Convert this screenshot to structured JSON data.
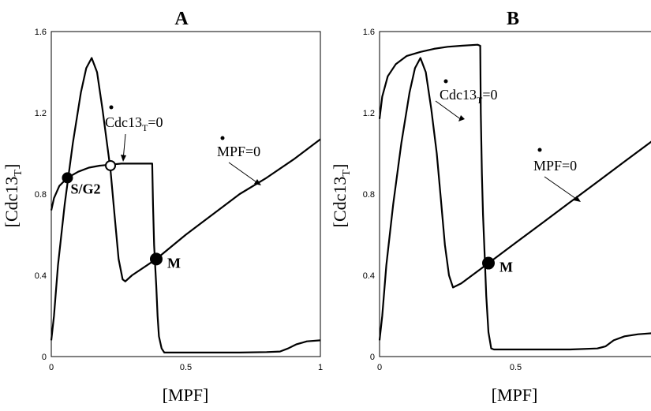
{
  "chart_data": [
    {
      "type": "line",
      "title": "A",
      "xlabel": "[MPF]",
      "ylabel": "[Cdc13_T]",
      "xlim": [
        0,
        1
      ],
      "ylim": [
        0,
        1.6
      ],
      "x_ticks": [
        "0",
        "0.5",
        "1"
      ],
      "y_ticks": [
        "0",
        "0.4",
        "0.8",
        "1.2",
        "1.6"
      ],
      "series": [
        {
          "name": "Cdc13_T=0",
          "points": [
            [
              0.0,
              0.72
            ],
            [
              0.01,
              0.78
            ],
            [
              0.03,
              0.84
            ],
            [
              0.06,
              0.88
            ],
            [
              0.1,
              0.91
            ],
            [
              0.14,
              0.93
            ],
            [
              0.18,
              0.94
            ],
            [
              0.22,
              0.945
            ],
            [
              0.26,
              0.95
            ],
            [
              0.3,
              0.95
            ],
            [
              0.34,
              0.95
            ],
            [
              0.375,
              0.95
            ],
            [
              0.378,
              0.75
            ],
            [
              0.382,
              0.55
            ],
            [
              0.386,
              0.45
            ],
            [
              0.39,
              0.35
            ],
            [
              0.395,
              0.2
            ],
            [
              0.4,
              0.1
            ],
            [
              0.41,
              0.04
            ],
            [
              0.42,
              0.02
            ],
            [
              0.5,
              0.02
            ],
            [
              0.6,
              0.02
            ],
            [
              0.7,
              0.02
            ],
            [
              0.8,
              0.022
            ],
            [
              0.85,
              0.025
            ],
            [
              0.88,
              0.04
            ],
            [
              0.91,
              0.06
            ],
            [
              0.95,
              0.075
            ],
            [
              1.0,
              0.08
            ]
          ]
        },
        {
          "name": "MPF=0",
          "points": [
            [
              0.0,
              0.08
            ],
            [
              0.01,
              0.2
            ],
            [
              0.025,
              0.45
            ],
            [
              0.05,
              0.75
            ],
            [
              0.08,
              1.05
            ],
            [
              0.11,
              1.3
            ],
            [
              0.13,
              1.42
            ],
            [
              0.15,
              1.47
            ],
            [
              0.17,
              1.4
            ],
            [
              0.19,
              1.22
            ],
            [
              0.21,
              1.02
            ],
            [
              0.22,
              0.92
            ],
            [
              0.235,
              0.7
            ],
            [
              0.25,
              0.48
            ],
            [
              0.265,
              0.38
            ],
            [
              0.275,
              0.37
            ],
            [
              0.3,
              0.4
            ],
            [
              0.39,
              0.48
            ],
            [
              0.5,
              0.6
            ],
            [
              0.6,
              0.7
            ],
            [
              0.7,
              0.8
            ],
            [
              0.8,
              0.88
            ],
            [
              0.9,
              0.97
            ],
            [
              1.0,
              1.07
            ]
          ]
        }
      ],
      "markers": [
        {
          "label": "S/G2",
          "x": 0.06,
          "y": 0.88,
          "filled": true
        },
        {
          "label": "",
          "x": 0.22,
          "y": 0.94,
          "filled": false
        },
        {
          "label": "M",
          "x": 0.39,
          "y": 0.48,
          "filled": true
        }
      ],
      "annotations": {
        "cdc13": {
          "text": "Cdc13",
          "sub": "T",
          "suffix": "=0"
        },
        "mpf": "MPF=0"
      }
    },
    {
      "type": "line",
      "title": "B",
      "xlabel": "[MPF]",
      "ylabel": "[Cdc13_T]",
      "xlim": [
        0,
        1
      ],
      "ylim": [
        0,
        1.6
      ],
      "x_ticks": [
        "0",
        "0.5"
      ],
      "y_ticks": [
        "0",
        "0.4",
        "0.8",
        "1.2",
        "1.6"
      ],
      "series": [
        {
          "name": "Cdc13_T=0",
          "points": [
            [
              0.0,
              1.17
            ],
            [
              0.01,
              1.28
            ],
            [
              0.03,
              1.38
            ],
            [
              0.06,
              1.44
            ],
            [
              0.1,
              1.48
            ],
            [
              0.15,
              1.5
            ],
            [
              0.2,
              1.515
            ],
            [
              0.25,
              1.525
            ],
            [
              0.3,
              1.53
            ],
            [
              0.36,
              1.535
            ],
            [
              0.37,
              1.53
            ],
            [
              0.372,
              1.2
            ],
            [
              0.376,
              0.9
            ],
            [
              0.38,
              0.7
            ],
            [
              0.386,
              0.5
            ],
            [
              0.392,
              0.3
            ],
            [
              0.4,
              0.12
            ],
            [
              0.41,
              0.04
            ],
            [
              0.42,
              0.035
            ],
            [
              0.5,
              0.035
            ],
            [
              0.6,
              0.035
            ],
            [
              0.7,
              0.035
            ],
            [
              0.8,
              0.04
            ],
            [
              0.83,
              0.05
            ],
            [
              0.86,
              0.08
            ],
            [
              0.9,
              0.1
            ],
            [
              0.95,
              0.11
            ],
            [
              1.0,
              0.115
            ]
          ]
        },
        {
          "name": "MPF=0",
          "points": [
            [
              0.0,
              0.08
            ],
            [
              0.01,
              0.2
            ],
            [
              0.025,
              0.45
            ],
            [
              0.05,
              0.75
            ],
            [
              0.08,
              1.05
            ],
            [
              0.11,
              1.3
            ],
            [
              0.13,
              1.42
            ],
            [
              0.15,
              1.47
            ],
            [
              0.17,
              1.4
            ],
            [
              0.19,
              1.22
            ],
            [
              0.21,
              1.0
            ],
            [
              0.225,
              0.78
            ],
            [
              0.24,
              0.55
            ],
            [
              0.255,
              0.4
            ],
            [
              0.27,
              0.34
            ],
            [
              0.3,
              0.36
            ],
            [
              0.4,
              0.46
            ],
            [
              0.5,
              0.56
            ],
            [
              0.6,
              0.66
            ],
            [
              0.7,
              0.76
            ],
            [
              0.8,
              0.86
            ],
            [
              0.9,
              0.96
            ],
            [
              1.0,
              1.06
            ]
          ]
        }
      ],
      "markers": [
        {
          "label": "M",
          "x": 0.4,
          "y": 0.46,
          "filled": true
        }
      ],
      "annotations": {
        "cdc13": {
          "text": "Cdc13",
          "sub": "T",
          "suffix": "=0"
        },
        "mpf": "MPF=0"
      }
    }
  ]
}
